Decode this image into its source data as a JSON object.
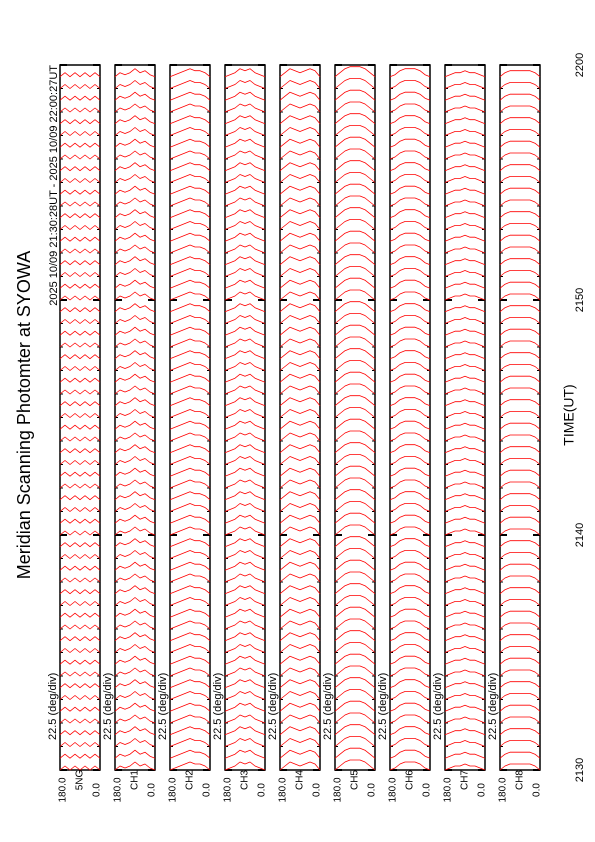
{
  "chart_data": {
    "type": "line",
    "title": "Meridian Scanning Photomter at SYOWA",
    "subtitle": "2025 10/09 21:30:28UT - 2025 10/09 22:00:27UT",
    "xlabel": "TIME(UT)",
    "xlim": [
      0,
      30
    ],
    "xticks": [
      {
        "value": 0,
        "label": "2130"
      },
      {
        "value": 10,
        "label": "2140"
      },
      {
        "value": 20,
        "label": "2150"
      },
      {
        "value": 30,
        "label": "2200"
      }
    ],
    "scan_interval": 0.5,
    "panels": [
      {
        "scale_label": "22.5 (deg/div)",
        "channel": "5NG",
        "ylim": [
          0,
          180
        ],
        "yticks": [
          {
            "value": 0,
            "label": "0.0"
          },
          {
            "value": 180,
            "label": "180.0"
          }
        ],
        "color": "#ff0000",
        "profile": [
          0,
          2,
          0,
          2,
          0,
          2,
          0,
          2,
          0
        ]
      },
      {
        "scale_label": "22.5 (deg/div)",
        "channel": "CH1",
        "ylim": [
          0,
          180
        ],
        "yticks": [
          {
            "value": 0,
            "label": "0.0"
          },
          {
            "value": 180,
            "label": "180.0"
          }
        ],
        "color": "#ff0000",
        "profile": [
          0,
          1,
          3,
          2,
          4,
          2,
          1,
          2,
          0
        ]
      },
      {
        "scale_label": "22.5 (deg/div)",
        "channel": "CH2",
        "ylim": [
          0,
          180
        ],
        "yticks": [
          {
            "value": 0,
            "label": "0.0"
          },
          {
            "value": 180,
            "label": "180.0"
          }
        ],
        "color": "#ff0000",
        "profile": [
          0,
          2,
          3,
          3,
          4,
          3,
          2,
          1,
          0
        ]
      },
      {
        "scale_label": "22.5 (deg/div)",
        "channel": "CH3",
        "ylim": [
          0,
          180
        ],
        "yticks": [
          {
            "value": 0,
            "label": "0.0"
          },
          {
            "value": 180,
            "label": "180.0"
          }
        ],
        "color": "#ff0000",
        "profile": [
          0,
          1,
          2,
          4,
          3,
          4,
          2,
          1,
          0
        ]
      },
      {
        "scale_label": "22.5 (deg/div)",
        "channel": "CH4",
        "ylim": [
          0,
          180
        ],
        "yticks": [
          {
            "value": 0,
            "label": "0.0"
          },
          {
            "value": 180,
            "label": "180.0"
          }
        ],
        "color": "#ff0000",
        "profile": [
          0,
          3,
          4,
          3,
          2,
          3,
          4,
          2,
          0
        ]
      },
      {
        "scale_label": "22.5 (deg/div)",
        "channel": "CH5",
        "ylim": [
          0,
          180
        ],
        "yticks": [
          {
            "value": 0,
            "label": "0.0"
          },
          {
            "value": 180,
            "label": "180.0"
          }
        ],
        "color": "#ff0000",
        "profile": [
          0,
          2,
          4,
          5,
          5,
          5,
          4,
          2,
          0
        ]
      },
      {
        "scale_label": "22.5 (deg/div)",
        "channel": "CH6",
        "ylim": [
          0,
          180
        ],
        "yticks": [
          {
            "value": 0,
            "label": "0.0"
          },
          {
            "value": 180,
            "label": "180.0"
          }
        ],
        "color": "#ff0000",
        "profile": [
          0,
          1,
          3,
          4,
          4,
          4,
          3,
          1,
          0
        ]
      },
      {
        "scale_label": "22.5 (deg/div)",
        "channel": "CH7",
        "ylim": [
          0,
          180
        ],
        "yticks": [
          {
            "value": 0,
            "label": "0.0"
          },
          {
            "value": 180,
            "label": "180.0"
          }
        ],
        "color": "#ff0000",
        "profile": [
          0,
          1,
          2,
          2,
          3,
          2,
          2,
          1,
          0
        ]
      },
      {
        "scale_label": "22.5 (deg/div)",
        "channel": "CH8",
        "ylim": [
          0,
          180
        ],
        "yticks": [
          {
            "value": 0,
            "label": "0.0"
          },
          {
            "value": 180,
            "label": "180.0"
          }
        ],
        "color": "#ff0000",
        "profile": [
          0,
          2,
          3,
          3,
          3,
          3,
          3,
          2,
          0
        ]
      }
    ]
  }
}
